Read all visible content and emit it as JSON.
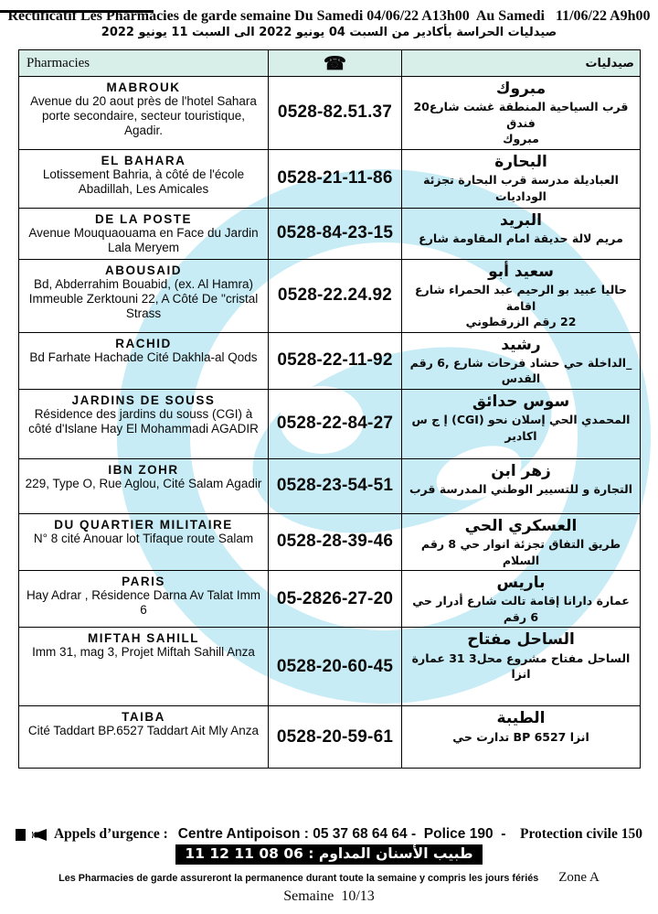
{
  "title": "Rectificatif Les Pharmacies de garde semaine Du Samedi 04/06/22 A13h00  Au Samedi   11/06/22 A9h00",
  "subtitle_ar": "صيدليات الحراسة بأكادير من السبت 04 يونيو 2022 الى السبت 11 يونيو 2022",
  "table": {
    "header": {
      "col_fr": "Pharmacies",
      "phone_icon_char": "☎",
      "col_ar": "صيدليات"
    },
    "rows": [
      {
        "name": "MABROUK",
        "address": "Avenue du 20 aout près de l'hotel Sahara porte secondaire, secteur touristique, Agadir.",
        "phone": "0528-82.51.37",
        "name_ar": "مبروك",
        "address_ar_lines": [
          "شارع20 غشت المنطقة السياحية قرب فندق",
          "مبروك"
        ]
      },
      {
        "name": "EL BAHARA",
        "address": "Lotissement Bahria, à côté de l'école Abadillah, Les Amicales",
        "phone": "0528-21-11-86",
        "name_ar": "البحارة",
        "address_ar_lines": [
          "تجزئة البحارة قرب مدرسة العباديلة الوداديات"
        ]
      },
      {
        "name": "DE LA POSTE",
        "address": "Avenue Mouquaouama en Face du Jardin Lala Meryem",
        "phone": "0528-84-23-15",
        "name_ar": "البريد",
        "address_ar_lines": [
          "شارع المقاومة امام حديقة لالة مريم"
        ]
      },
      {
        "name": "ABOUSAID",
        "address": "Bd, Abderrahim Bouabid, (ex. Al Hamra) Immeuble Zerktouni 22,  A Côté De ''cristal Strass",
        "phone": "0528-22.24.92",
        "name_ar": "أبو سعيد",
        "address_ar_lines": [
          "شارع الحمراء عبد الرحيم بو عبيد حاليا اقامة",
          "الزرقطوني رقم 22"
        ]
      },
      {
        "name": "RACHID",
        "address": "Bd  Farhate Hachade Cité Dakhla-al Qods",
        "phone": "0528-22-11-92",
        "name_ar": "رشيد",
        "address_ar_lines": [
          "رقم 6, شارع فرحات حشاد حي الداخلة_ القدس"
        ]
      },
      {
        "name": "JARDINS DE SOUSS",
        "address": "Résidence des jardins du souss (CGI) à côté d'Islane Hay El Mohammadi AGADIR",
        "phone": "0528-22-84-27",
        "name_ar": "حدائق سوس",
        "address_ar_lines": [
          "س ج إ (CGI) نحو إسلان الحي المحمدي",
          "اكادير"
        ]
      },
      {
        "name": "IBN ZOHR",
        "address": "229, Type O, Rue Aglou, Cité Salam Agadir",
        "phone": "0528-23-54-51",
        "name_ar": "ابن زهر",
        "address_ar_lines": [
          "قرب المدرسة الوطني للتسيير و التجارة"
        ]
      },
      {
        "name": "DU QUARTIER MILITAIRE",
        "address": "N° 8 cité Anouar lot Tifaque route Salam",
        "phone": "0528-28-39-46",
        "name_ar": "الحي العسكري",
        "address_ar_lines": [
          "رقم 8 حي انوار تجزئة التفاق طريق السلام"
        ]
      },
      {
        "name": "PARIS",
        "address": "Hay Adrar  , Résidence Darna Av Talat Imm 6",
        "phone": "05-2826-27-20",
        "name_ar": "باريس",
        "address_ar_lines": [
          "حي أدرار شارع تالت إقامة دارانا عمارة رقم 6"
        ]
      },
      {
        "name": "MIFTAH SAHILL",
        "address": "Imm 31, mag 3, Projet Miftah Sahill Anza",
        "phone": "0528-20-60-45",
        "name_ar": "مفتاح الساحل",
        "address_ar_lines": [
          "عمارة 31 محل3 مشروع مفتاح الساحل انزا"
        ]
      },
      {
        "name": "TAIBA",
        "address": "Cité Taddart BP.6527 Taddart Ait Mly Anza",
        "phone": "0528-20-59-61",
        "name_ar": "الطيبة",
        "address_ar_lines": [
          "حي تدارت BP 6527 انزا"
        ]
      }
    ]
  },
  "footer": {
    "emergency": {
      "icons": [
        "black-square-icon",
        "speaker-icon"
      ],
      "label": "Appels d’urgence : ",
      "body": "Centre Antipoison : 05 37 68 64 64 -  Police 190  -  ",
      "civil": "Protection civile 150"
    },
    "dentist_ar": "طبيب الأسنان المداوم : 06 08 11 12 11",
    "note": "Les Pharmacies de garde assureront la permanence durant toute la semaine y compris les jours fériés",
    "zone": "Zone A",
    "week": "Semaine  10/13"
  },
  "colors": {
    "header_bg": "#d8eee9",
    "watermark": "#c7ecf5",
    "bar_bg": "#000000",
    "bar_fg": "#ffffff"
  }
}
